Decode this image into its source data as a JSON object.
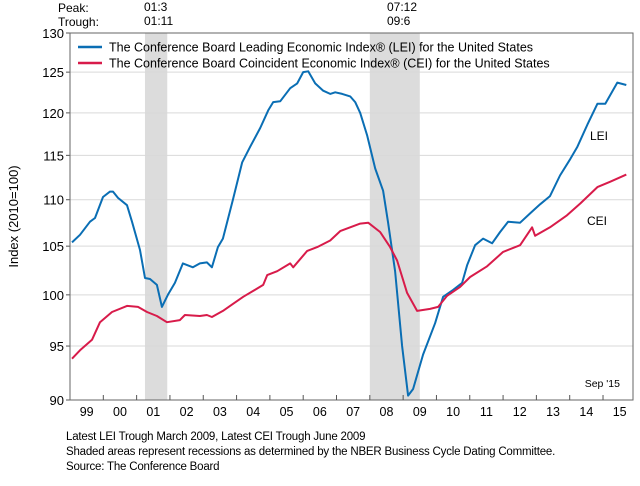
{
  "chart_data": {
    "type": "line",
    "title": "",
    "xlabel": "",
    "ylabel": "Index (2010=100)",
    "y_scale": "log",
    "ylim": [
      90,
      130
    ],
    "xlim": [
      1999,
      2015.9
    ],
    "grid": true,
    "legend_placement": "top-left",
    "y_ticks": [
      90,
      95,
      100,
      105,
      110,
      115,
      120,
      125,
      130
    ],
    "x_tick_labels": [
      "99",
      "00",
      "01",
      "02",
      "03",
      "04",
      "05",
      "06",
      "07",
      "08",
      "09",
      "10",
      "11",
      "12",
      "13",
      "14",
      "15"
    ],
    "recessions": [
      {
        "start": 2001.25,
        "end": 2001.92,
        "peak_label": "01:3",
        "trough_label": "01:11"
      },
      {
        "start": 2008.0,
        "end": 2009.5,
        "peak_label": "07:12",
        "trough_label": "09:6"
      }
    ],
    "peak_heading": "Peak:",
    "trough_heading": "Trough:",
    "end_label": "Sep '15",
    "series": [
      {
        "name": "The Conference Board Leading Economic Index® (LEI) for the United States",
        "short_label": "LEI",
        "color": "#0a6eb4",
        "points": [
          [
            1999.06,
            105.4
          ],
          [
            1999.3,
            106.2
          ],
          [
            1999.6,
            107.6
          ],
          [
            1999.75,
            108.0
          ],
          [
            1999.99,
            110.3
          ],
          [
            2000.2,
            110.9
          ],
          [
            2000.29,
            110.9
          ],
          [
            2000.44,
            110.2
          ],
          [
            2000.71,
            109.4
          ],
          [
            2000.86,
            107.6
          ],
          [
            2001.1,
            104.6
          ],
          [
            2001.25,
            101.7
          ],
          [
            2001.4,
            101.6
          ],
          [
            2001.61,
            101.0
          ],
          [
            2001.76,
            98.8
          ],
          [
            2001.94,
            100.0
          ],
          [
            2002.15,
            101.2
          ],
          [
            2002.39,
            103.2
          ],
          [
            2002.69,
            102.8
          ],
          [
            2002.9,
            103.2
          ],
          [
            2003.11,
            103.3
          ],
          [
            2003.26,
            102.8
          ],
          [
            2003.44,
            104.9
          ],
          [
            2003.59,
            105.8
          ],
          [
            2003.89,
            110.0
          ],
          [
            2004.17,
            114.2
          ],
          [
            2004.41,
            116.0
          ],
          [
            2004.71,
            118.2
          ],
          [
            2004.95,
            120.3
          ],
          [
            2005.1,
            121.3
          ],
          [
            2005.31,
            121.4
          ],
          [
            2005.61,
            123.0
          ],
          [
            2005.82,
            123.6
          ],
          [
            2006.0,
            125.0
          ],
          [
            2006.15,
            125.1
          ],
          [
            2006.36,
            123.6
          ],
          [
            2006.6,
            122.7
          ],
          [
            2006.81,
            122.3
          ],
          [
            2006.96,
            122.5
          ],
          [
            2007.17,
            122.3
          ],
          [
            2007.41,
            122.0
          ],
          [
            2007.56,
            121.3
          ],
          [
            2007.71,
            120.0
          ],
          [
            2007.92,
            117.3
          ],
          [
            2008.16,
            113.5
          ],
          [
            2008.4,
            111.0
          ],
          [
            2008.55,
            107.5
          ],
          [
            2008.76,
            102.4
          ],
          [
            2008.97,
            95.0
          ],
          [
            2009.15,
            90.4
          ],
          [
            2009.3,
            91.0
          ],
          [
            2009.6,
            94.2
          ],
          [
            2009.96,
            97.2
          ],
          [
            2010.2,
            99.8
          ],
          [
            2010.5,
            100.5
          ],
          [
            2010.77,
            101.2
          ],
          [
            2010.92,
            103.0
          ],
          [
            2011.16,
            105.1
          ],
          [
            2011.4,
            105.8
          ],
          [
            2011.67,
            105.3
          ],
          [
            2011.91,
            106.5
          ],
          [
            2012.15,
            107.6
          ],
          [
            2012.51,
            107.5
          ],
          [
            2012.81,
            108.5
          ],
          [
            2013.11,
            109.5
          ],
          [
            2013.41,
            110.4
          ],
          [
            2013.71,
            112.7
          ],
          [
            2014.02,
            114.6
          ],
          [
            2014.23,
            116.0
          ],
          [
            2014.53,
            118.6
          ],
          [
            2014.83,
            121.1
          ],
          [
            2015.07,
            121.1
          ],
          [
            2015.43,
            123.7
          ],
          [
            2015.7,
            123.4
          ]
        ]
      },
      {
        "name": "The Conference Board Coincident Economic Index® (CEI) for the United States",
        "short_label": "CEI",
        "color": "#d81b4a",
        "points": [
          [
            1999.06,
            93.8
          ],
          [
            1999.3,
            94.6
          ],
          [
            1999.66,
            95.6
          ],
          [
            1999.9,
            97.3
          ],
          [
            2000.26,
            98.3
          ],
          [
            2000.71,
            98.9
          ],
          [
            2001.04,
            98.8
          ],
          [
            2001.31,
            98.3
          ],
          [
            2001.61,
            97.9
          ],
          [
            2001.91,
            97.3
          ],
          [
            2002.3,
            97.5
          ],
          [
            2002.45,
            98.0
          ],
          [
            2002.9,
            97.9
          ],
          [
            2003.11,
            98.0
          ],
          [
            2003.26,
            97.8
          ],
          [
            2003.59,
            98.4
          ],
          [
            2003.89,
            99.1
          ],
          [
            2004.2,
            99.8
          ],
          [
            2004.5,
            100.4
          ],
          [
            2004.8,
            101.0
          ],
          [
            2004.92,
            102.0
          ],
          [
            2005.22,
            102.4
          ],
          [
            2005.61,
            103.2
          ],
          [
            2005.7,
            102.8
          ],
          [
            2006.12,
            104.5
          ],
          [
            2006.42,
            104.9
          ],
          [
            2006.81,
            105.6
          ],
          [
            2007.11,
            106.6
          ],
          [
            2007.41,
            107.0
          ],
          [
            2007.71,
            107.4
          ],
          [
            2007.95,
            107.5
          ],
          [
            2008.31,
            106.5
          ],
          [
            2008.61,
            104.9
          ],
          [
            2008.82,
            103.5
          ],
          [
            2009.12,
            100.2
          ],
          [
            2009.42,
            98.4
          ],
          [
            2009.81,
            98.6
          ],
          [
            2010.05,
            98.8
          ],
          [
            2010.32,
            99.9
          ],
          [
            2010.71,
            100.8
          ],
          [
            2011.01,
            101.8
          ],
          [
            2011.52,
            102.9
          ],
          [
            2012.0,
            104.4
          ],
          [
            2012.51,
            105.1
          ],
          [
            2012.87,
            107.0
          ],
          [
            2012.96,
            106.1
          ],
          [
            2013.41,
            107.0
          ],
          [
            2013.92,
            108.3
          ],
          [
            2014.32,
            109.6
          ],
          [
            2014.83,
            111.4
          ],
          [
            2015.22,
            112.0
          ],
          [
            2015.7,
            112.8
          ]
        ]
      }
    ],
    "footnotes": [
      "Latest LEI Trough March 2009, Latest CEI Trough June 2009",
      "Shaded areas represent recessions as determined by the NBER Business Cycle Dating Committee.",
      "Source: The Conference Board"
    ]
  }
}
